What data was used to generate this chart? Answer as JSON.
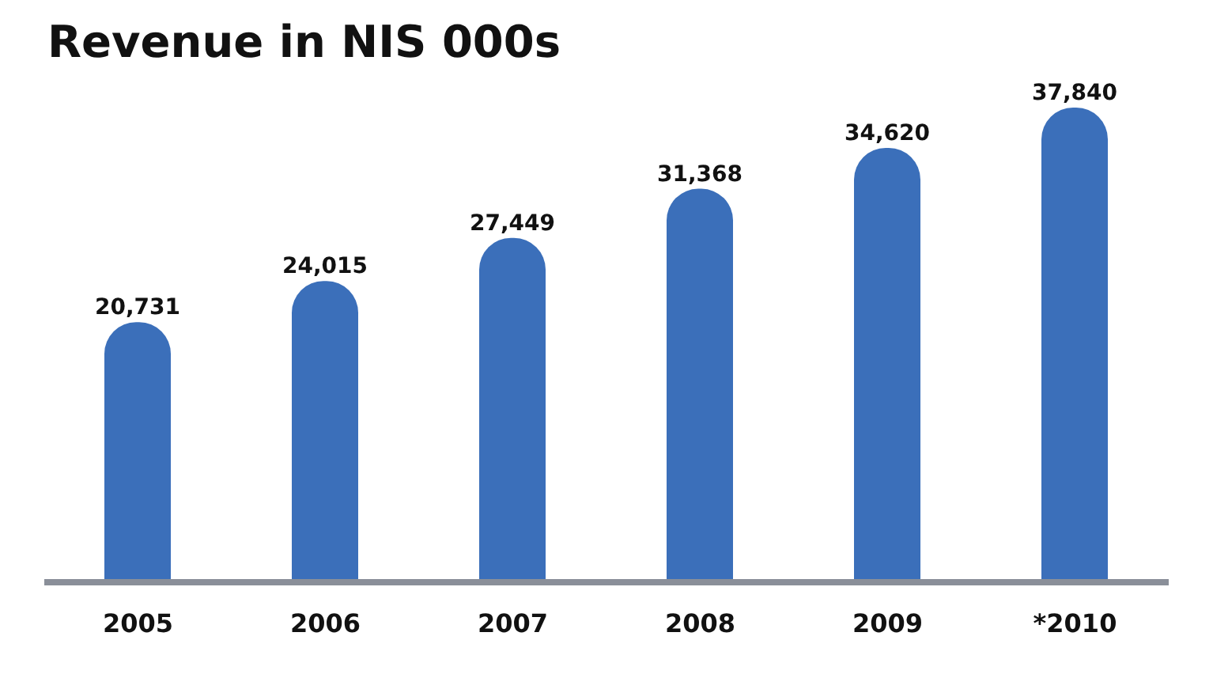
{
  "chart_data": {
    "type": "bar",
    "title": "Revenue in NIS 000s",
    "categories": [
      "2005",
      "2006",
      "2007",
      "2008",
      "2009",
      "*2010"
    ],
    "values": [
      20731,
      24015,
      27449,
      31368,
      34620,
      37840
    ],
    "value_labels": [
      "20,731",
      "24,015",
      "27,449",
      "31,368",
      "34,620",
      "37,840"
    ],
    "color": "#3b6fba"
  }
}
